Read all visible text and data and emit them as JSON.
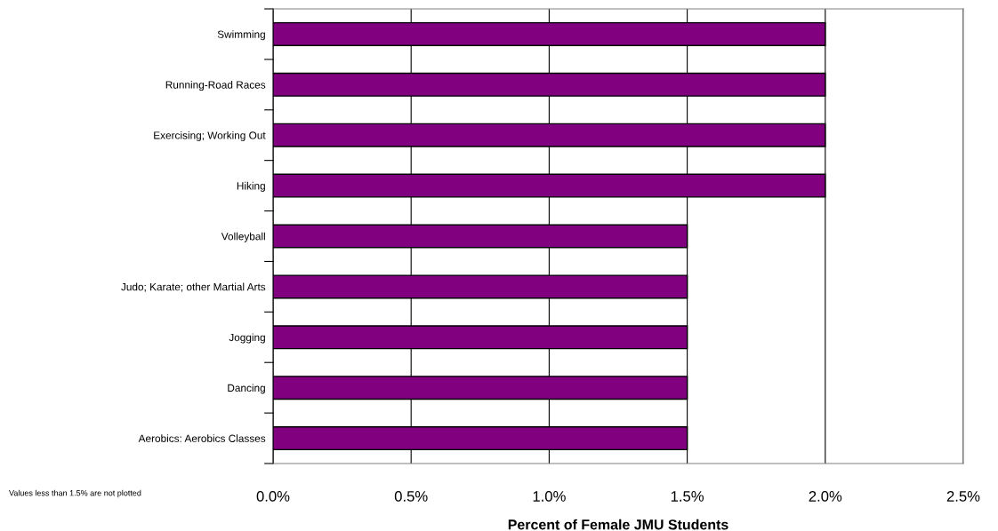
{
  "chart_data": {
    "type": "bar",
    "orientation": "horizontal",
    "categories": [
      "Swimming",
      "Running-Road Races",
      "Exercising; Working Out",
      "Hiking",
      "Volleyball",
      "Judo; Karate; other Martial Arts",
      "Jogging",
      "Dancing",
      "Aerobics: Aerobics Classes"
    ],
    "values": [
      2.0,
      2.0,
      2.0,
      2.0,
      1.5,
      1.5,
      1.5,
      1.5,
      1.5
    ],
    "color": "#800080",
    "xlim": [
      0,
      2.5
    ],
    "xticks": [
      {
        "value": 0,
        "label": "0.0%"
      },
      {
        "value": 0.5,
        "label": "0.5%"
      },
      {
        "value": 1.0,
        "label": "1.0%"
      },
      {
        "value": 1.5,
        "label": "1.5%"
      },
      {
        "value": 2.0,
        "label": "2.0%"
      },
      {
        "value": 2.5,
        "label": "2.5%"
      }
    ],
    "xlabel": "Percent of Female JMU Students",
    "annotations": [
      "Values less than 1.5% are not plotted"
    ],
    "grid": "x",
    "legend": false
  }
}
